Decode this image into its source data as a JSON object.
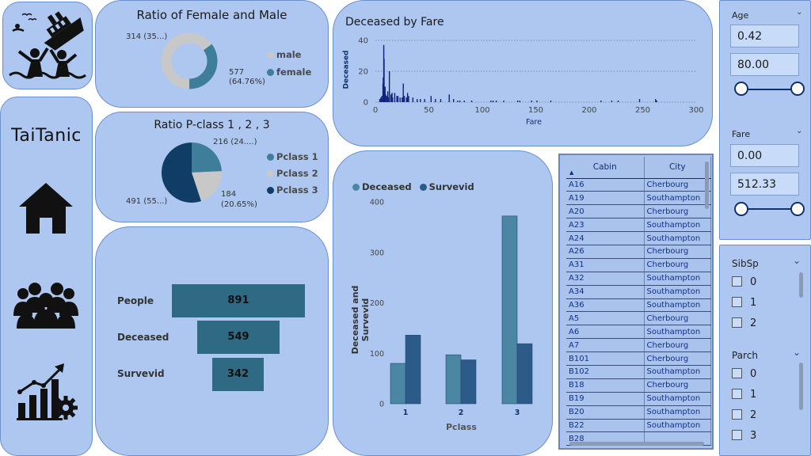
{
  "brand": {
    "title": "TaiTanic"
  },
  "gender_chart": {
    "title": "Ratio of Female and Male",
    "legend": [
      "male",
      "female"
    ],
    "colors": {
      "male": "#c8c8c8",
      "female": "#3e7e9a"
    },
    "label_male": "577",
    "label_male_pct": "(64.76%)",
    "label_female": "314 (35...)"
  },
  "pclass_chart": {
    "title": "Ratio P-class 1 , 2 , 3",
    "legend": [
      "Pclass 1",
      "Pclass 2",
      "Pclass 3"
    ],
    "colors": {
      "p1": "#3e7e9a",
      "p2": "#c8c8c8",
      "p3": "#0f3d66"
    },
    "label_p1": "216 (24....)",
    "label_p2": "184",
    "label_p2_pct": "(20.65%)",
    "label_p3": "491 (55...)"
  },
  "funnel": {
    "rows": [
      {
        "label": "People",
        "value": "891"
      },
      {
        "label": "Deceased",
        "value": "549"
      },
      {
        "label": "Survevid",
        "value": "342"
      }
    ],
    "color": "#2e6a84"
  },
  "chart_data": [
    {
      "type": "pie",
      "title": "Ratio of Female and Male",
      "categories": [
        "male",
        "female"
      ],
      "values": [
        577,
        314
      ],
      "percent": [
        64.76,
        35.24
      ]
    },
    {
      "type": "pie",
      "title": "Ratio P-class 1 , 2 , 3",
      "categories": [
        "Pclass 1",
        "Pclass 2",
        "Pclass 3"
      ],
      "values": [
        216,
        184,
        491
      ],
      "percent": [
        24.24,
        20.65,
        55.11
      ]
    },
    {
      "type": "bar",
      "title": "",
      "categories": [
        "People",
        "Deceased",
        "Survevid"
      ],
      "values": [
        891,
        549,
        342
      ]
    },
    {
      "type": "bar",
      "title": "Deceased by Fare",
      "xlabel": "Fare",
      "ylabel": "Deceased",
      "xlim": [
        0,
        300
      ],
      "ylim": [
        0,
        40
      ],
      "xticks": [
        0,
        50,
        100,
        150,
        200,
        250,
        300
      ],
      "yticks": [
        0,
        20,
        40
      ],
      "x": [
        4,
        5,
        6,
        7,
        7.25,
        7.5,
        7.75,
        7.9,
        8.05,
        8.5,
        9,
        9.5,
        10.5,
        11.5,
        12.5,
        13,
        14.5,
        15.5,
        16,
        18,
        20,
        21,
        23,
        25,
        26,
        27,
        29,
        30,
        31,
        35,
        39,
        42,
        46,
        52,
        56,
        61,
        69,
        73,
        77,
        79,
        83,
        90,
        108,
        110,
        113,
        120,
        133,
        135,
        146,
        151,
        164,
        211,
        221,
        227,
        247,
        262,
        263
      ],
      "y": [
        2,
        3,
        4,
        12,
        16,
        9,
        37,
        8,
        28,
        6,
        10,
        5,
        4,
        7,
        3,
        20,
        5,
        6,
        3,
        6,
        4,
        4,
        3,
        3,
        12,
        4,
        3,
        6,
        4,
        3,
        2,
        2,
        2,
        4,
        2,
        2,
        5,
        2,
        1,
        1,
        1,
        1,
        1,
        1,
        1,
        1,
        1,
        1,
        1,
        1,
        1,
        1,
        1,
        1,
        2,
        2,
        1
      ],
      "grid": "dashed horizontal"
    },
    {
      "type": "bar",
      "title": "",
      "categories": [
        "1",
        "2",
        "3"
      ],
      "xlabel": "Pclass",
      "ylabel": "Deceased and Survevid",
      "ylim": [
        0,
        400
      ],
      "yticks": [
        0,
        100,
        200,
        300,
        400
      ],
      "legend_position": "top-left",
      "series": [
        {
          "name": "Deceased",
          "values": [
            80,
            97,
            372
          ],
          "color": "#4b86a3"
        },
        {
          "name": "Survevid",
          "values": [
            136,
            87,
            119
          ],
          "color": "#2c5b8a"
        }
      ]
    }
  ],
  "fare_chart": {
    "title": "Deceased by Fare",
    "xlabel": "Fare",
    "ylabel": "Deceased",
    "color": "#12227a"
  },
  "pclass_bar": {
    "legend": [
      "Deceased",
      "Survevid"
    ],
    "legend_colors": [
      "#4b86a3",
      "#2c5b8a"
    ],
    "xlabel": "Pclass",
    "ylabel": "Deceased and Survevid"
  },
  "table": {
    "headers": [
      "Cabin",
      "City"
    ],
    "rows": [
      [
        "A16",
        "Cherbourg"
      ],
      [
        "A19",
        "Southampton"
      ],
      [
        "A20",
        "Cherbourg"
      ],
      [
        "A23",
        "Southampton"
      ],
      [
        "A24",
        "Southampton"
      ],
      [
        "A26",
        "Cherbourg"
      ],
      [
        "A31",
        "Cherbourg"
      ],
      [
        "A32",
        "Southampton"
      ],
      [
        "A34",
        "Southampton"
      ],
      [
        "A36",
        "Southampton"
      ],
      [
        "A5",
        "Cherbourg"
      ],
      [
        "A6",
        "Southampton"
      ],
      [
        "A7",
        "Cherbourg"
      ],
      [
        "B101",
        "Cherbourg"
      ],
      [
        "B102",
        "Southampton"
      ],
      [
        "B18",
        "Cherbourg"
      ],
      [
        "B19",
        "Southampton"
      ],
      [
        "B20",
        "Southampton"
      ],
      [
        "B22",
        "Southampton"
      ],
      [
        "B28",
        ""
      ]
    ]
  },
  "slicers": {
    "age": {
      "label": "Age",
      "min": "0.42",
      "max": "80.00"
    },
    "fare": {
      "label": "Fare",
      "min": "0.00",
      "max": "512.33"
    },
    "sibsp": {
      "label": "SibSp",
      "options": [
        "0",
        "1",
        "2"
      ]
    },
    "parch": {
      "label": "Parch",
      "options": [
        "0",
        "1",
        "2",
        "3"
      ]
    }
  },
  "icons": [
    "ship-sinking-icon",
    "home-icon",
    "people-group-icon",
    "growth-chart-gear-icon",
    "chevron-down-icon",
    "sort-ascending-icon"
  ]
}
